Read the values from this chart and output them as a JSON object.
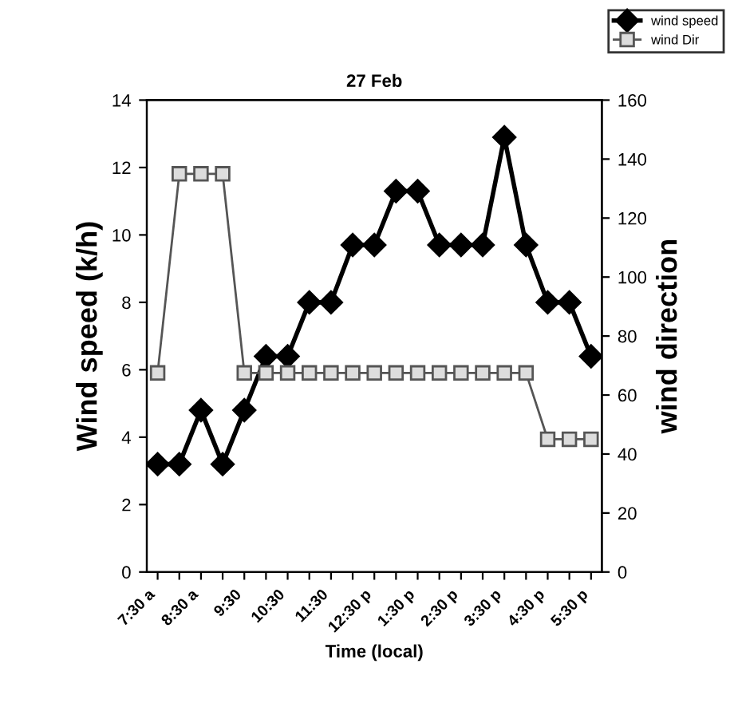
{
  "chart_data": {
    "type": "line",
    "title": "27 Feb",
    "xlabel": "Time (local)",
    "ylabel": "Wind speed (k/h)",
    "y2label": "wind direction",
    "categories": [
      "7:30 a",
      null,
      "8:30 a",
      null,
      "9:30",
      null,
      "10:30",
      null,
      "11:30",
      null,
      "12:30 p",
      null,
      "1:30 p",
      null,
      "2:30 p",
      null,
      "3:30 p",
      null,
      "4:30 p",
      null,
      "5:30 p"
    ],
    "series": [
      {
        "name": "wind speed",
        "color": "#000000",
        "marker": "diamond",
        "values": [
          3.2,
          3.2,
          4.8,
          3.2,
          4.8,
          6.4,
          6.4,
          8.0,
          8.0,
          9.7,
          9.7,
          11.3,
          11.3,
          9.7,
          9.7,
          9.7,
          12.9,
          9.7,
          8.0,
          8.0,
          6.4
        ]
      },
      {
        "name": "wind Dir",
        "color": "#555555",
        "marker": "square",
        "axis": "y2",
        "values": [
          67.5,
          135,
          135,
          135,
          67.5,
          67.5,
          67.5,
          67.5,
          67.5,
          67.5,
          67.5,
          67.5,
          67.5,
          67.5,
          67.5,
          67.5,
          67.5,
          67.5,
          45,
          45,
          45
        ]
      }
    ],
    "ylim": [
      0,
      14
    ],
    "yticks": [
      0,
      2,
      4,
      6,
      8,
      10,
      12,
      14
    ],
    "y2lim": [
      0,
      160
    ],
    "y2ticks": [
      0,
      20,
      40,
      60,
      80,
      100,
      120,
      140,
      160
    ],
    "grid": false,
    "legend": "top right"
  }
}
